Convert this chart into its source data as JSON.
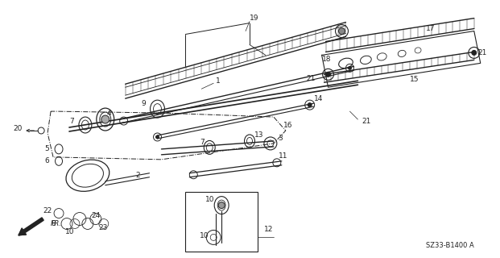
{
  "bg_color": "#ffffff",
  "line_color": "#222222",
  "figsize": [
    6.21,
    3.2
  ],
  "dpi": 100,
  "diagram_ref": "SZ33-B1400 A"
}
